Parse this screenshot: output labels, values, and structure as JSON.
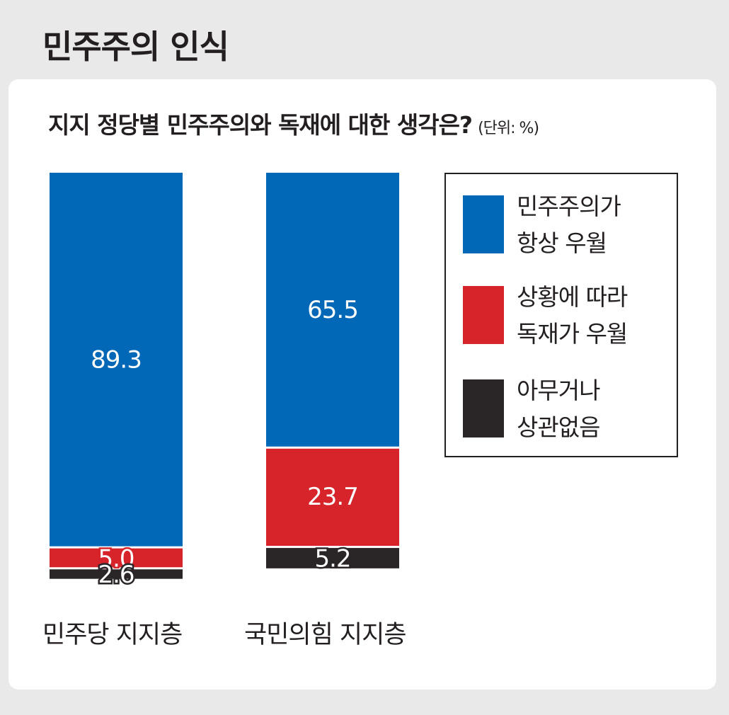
{
  "section_title": "민주주의 인식",
  "chart_title": "지지 정당별 민주주의와 독재에 대한 생각은?",
  "unit": "(단위: %)",
  "colors": {
    "democracy": "#0068b7",
    "dictatorship": "#d7232a",
    "indifferent": "#2a2526"
  },
  "legend": [
    {
      "key": "democracy",
      "line1": "민주주의가",
      "line2": "항상 우월"
    },
    {
      "key": "dictatorship",
      "line1": "상황에 따라",
      "line2": "독재가 우월"
    },
    {
      "key": "indifferent",
      "line1": "아무거나",
      "line2": "상관없음"
    }
  ],
  "chart_data": {
    "type": "bar",
    "stacked": true,
    "unit": "%",
    "categories": [
      "민주당 지지층",
      "국민의힘 지지층"
    ],
    "series": [
      {
        "name": "민주주의가 항상 우월",
        "color": "#0068b7",
        "values": [
          89.3,
          65.5
        ]
      },
      {
        "name": "상황에 따라 독재가 우월",
        "color": "#d7232a",
        "values": [
          5.0,
          23.7
        ]
      },
      {
        "name": "아무거나 상관없음",
        "color": "#2a2526",
        "values": [
          2.6,
          5.2
        ]
      }
    ],
    "labels": [
      [
        "89.3",
        "5.0",
        "2.6"
      ],
      [
        "65.5",
        "23.7",
        "5.2"
      ]
    ],
    "ylim": [
      0,
      100
    ],
    "legend": "right"
  }
}
